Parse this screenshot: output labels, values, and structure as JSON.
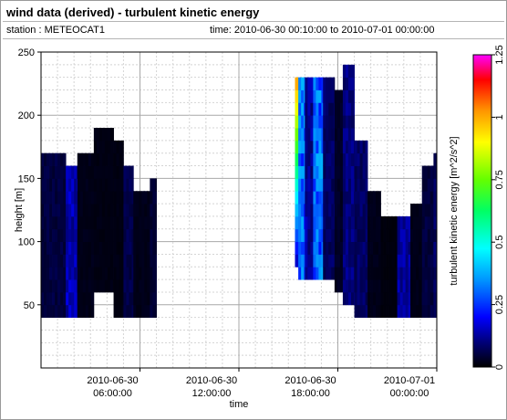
{
  "header": {
    "title": "wind data (derived) - turbulent kinetic energy",
    "station": "station : METEOCAT1",
    "time_range": "time: 2010-06-30 00:10:00 to 2010-07-01 00:00:00"
  },
  "chart_data": {
    "type": "heatmap",
    "xlabel": "time",
    "ylabel": "height [m]",
    "colorbar_label": "turbulent kinetic energy [m^2/s^2]",
    "xlim_hours": [
      0,
      24
    ],
    "ylim": [
      0,
      250
    ],
    "x_ticks": [
      {
        "hour": 6,
        "line1": "2010-06-30",
        "line2": "06:00:00"
      },
      {
        "hour": 12,
        "line1": "2010-06-30",
        "line2": "12:00:00"
      },
      {
        "hour": 18,
        "line1": "2010-06-30",
        "line2": "18:00:00"
      },
      {
        "hour": 24,
        "line1": "2010-07-01",
        "line2": "00:00:00"
      }
    ],
    "y_ticks": [
      "50",
      "100",
      "150",
      "200",
      "250"
    ],
    "y_tick_values": [
      50,
      100,
      150,
      200,
      250
    ],
    "colorbar": {
      "range": [
        0,
        1.25
      ],
      "ticks": [
        "0",
        "0.25",
        "0.5",
        "0.75",
        "1",
        "1.25"
      ],
      "tick_values": [
        0,
        0.25,
        0.5,
        0.75,
        1.0,
        1.25
      ]
    },
    "grid": true,
    "time_step_hours": 0.1667,
    "height_levels": [
      35,
      45,
      55,
      65,
      75,
      85,
      95,
      105,
      115,
      125,
      135,
      145,
      155,
      165,
      175,
      185,
      195,
      205,
      215,
      225,
      235,
      245
    ],
    "segments": [
      {
        "start": 0.0,
        "end": 1.5,
        "bottom": 35,
        "top": 175,
        "tke": 0.05
      },
      {
        "start": 1.5,
        "end": 2.2,
        "bottom": 35,
        "top": 165,
        "tke": 0.14
      },
      {
        "start": 2.2,
        "end": 3.2,
        "bottom": 35,
        "top": 175,
        "tke": 0.02
      },
      {
        "start": 3.2,
        "end": 4.4,
        "bottom": 55,
        "top": 195,
        "tke": 0.015
      },
      {
        "start": 4.4,
        "end": 5.0,
        "bottom": 35,
        "top": 185,
        "tke": 0.015
      },
      {
        "start": 5.0,
        "end": 5.6,
        "bottom": 35,
        "top": 165,
        "tke": 0.06
      },
      {
        "start": 5.6,
        "end": 6.6,
        "bottom": 35,
        "top": 145,
        "tke": 0.02
      },
      {
        "start": 6.6,
        "end": 7.0,
        "bottom": 35,
        "top": 155,
        "tke": 0.04
      },
      {
        "start": 15.4,
        "end": 15.6,
        "bottom": 75,
        "top": 235,
        "tke": 0.55
      },
      {
        "start": 15.6,
        "end": 16.0,
        "bottom": 70,
        "top": 235,
        "tke": 0.3
      },
      {
        "start": 16.0,
        "end": 16.5,
        "bottom": 70,
        "top": 235,
        "tke": 0.12
      },
      {
        "start": 16.5,
        "end": 17.1,
        "bottom": 65,
        "top": 235,
        "tke": 0.3
      },
      {
        "start": 17.1,
        "end": 17.8,
        "bottom": 65,
        "top": 235,
        "tke": 0.08
      },
      {
        "start": 17.8,
        "end": 18.3,
        "bottom": 55,
        "top": 225,
        "tke": 0.03
      },
      {
        "start": 18.3,
        "end": 19.0,
        "bottom": 45,
        "top": 240,
        "tke": 0.1
      },
      {
        "start": 19.0,
        "end": 19.8,
        "bottom": 35,
        "top": 185,
        "tke": 0.08
      },
      {
        "start": 19.8,
        "end": 20.6,
        "bottom": 35,
        "top": 140,
        "tke": 0.02
      },
      {
        "start": 20.6,
        "end": 21.6,
        "bottom": 35,
        "top": 125,
        "tke": 0.01
      },
      {
        "start": 21.6,
        "end": 22.4,
        "bottom": 35,
        "top": 125,
        "tke": 0.12
      },
      {
        "start": 22.4,
        "end": 23.1,
        "bottom": 35,
        "top": 135,
        "tke": 0.02
      },
      {
        "start": 23.1,
        "end": 23.8,
        "bottom": 35,
        "top": 165,
        "tke": 0.05
      },
      {
        "start": 23.8,
        "end": 24.0,
        "bottom": 35,
        "top": 175,
        "tke": 0.08
      }
    ]
  }
}
